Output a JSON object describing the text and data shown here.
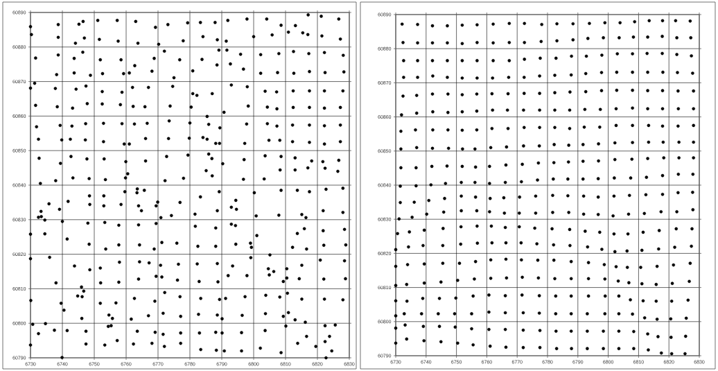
{
  "chart_data": [
    {
      "type": "scatter",
      "color": "#000000",
      "marker": "circle",
      "grid": true,
      "xlim": [
        6730,
        6830
      ],
      "ylim": [
        60790,
        60890
      ],
      "xticks": [
        6730,
        6740,
        6750,
        6760,
        6770,
        6780,
        6790,
        6800,
        6810,
        6820,
        6830
      ],
      "yticks": [
        60790,
        60800,
        60810,
        60820,
        60830,
        60840,
        60850,
        60860,
        60870,
        60880,
        60890
      ],
      "x": [
        6730.0,
        6738.7,
        6745.2,
        6746.5,
        6751.1,
        6757.2,
        6763.0,
        6769.2,
        6773.1,
        6730.3,
        6738.7,
        6744.1,
        6746.9,
        6751.6,
        6757.5,
        6763.7,
        6770.2,
        6772.0,
        6777.9,
        6731.6,
        6738.7,
        6743.7,
        6746.4,
        6751.9,
        6758.4,
        6762.7,
        6768.8,
        6776.8,
        6738.2,
        6743.7,
        6748.8,
        6752.6,
        6759.2,
        6761.0,
        6768.1,
        6775.0,
        6731.3,
        6730.0,
        6737.8,
        6744.3,
        6747.4,
        6752.5,
        6758.7,
        6762.0,
        6767.0,
        6774.6,
        6731.6,
        6738.4,
        6743.2,
        6747.8,
        6752.5,
        6758.2,
        6762.2,
        6765.9,
        6773.8,
        6731.9,
        6739.3,
        6743.0,
        6747.3,
        6752.9,
        6758.7,
        6762.6,
        6766.6,
        6773.5,
        6732.5,
        6739.8,
        6742.5,
        6747.2,
        6752.9,
        6759.4,
        6761.0,
        6766.1,
        6773.3,
        6732.7,
        6739.4,
        6742.7,
        6747.7,
        6753.1,
        6759.9,
        6766.1,
        6772.7,
        6760.5,
        6733.1,
        6737.9,
        6743.3,
        6748.4,
        6753.5,
        6759.8,
        6772.2,
        6779.3,
        6783.3,
        6787.9,
        6791.9,
        6797.9,
        6804.1,
        6808.6,
        6813.1,
        6817.1,
        6821.2,
        6826.7,
        6784.1,
        6788.6,
        6791.4,
        6800.0,
        6805.8,
        6810.9,
        6815.4,
        6817.0,
        6821.4,
        6827.2,
        6783.8,
        6789.1,
        6791.6,
        6795.9,
        6802.2,
        6807.9,
        6812.5,
        6817.3,
        6822.2,
        6828.1,
        6780.9,
        6788.5,
        6792.7,
        6796.8,
        6802.2,
        6807.5,
        6812.6,
        6817.5,
        6822.4,
        6828.3,
        6780.9,
        6782.2,
        6787.0,
        6793.0,
        6798.0,
        6803.6,
        6807.2,
        6812.4,
        6817.5,
        6822.2,
        6828.0,
        6780.4,
        6785.4,
        6790.7,
        6798.3,
        6804.3,
        6807.3,
        6812.4,
        6817.5,
        6822.2,
        6827.2,
        6780.0,
        6785.9,
        6789.4,
        6797.8,
        6804.3,
        6807.3,
        6812.2,
        6817.5,
        6822.2,
        6827.2,
        6779.8,
        6784.1,
        6785.4,
        6788.1,
        6789.3,
        6797.2,
        6804.8,
        6808.2,
        6812.2,
        6817.5,
        6822.2,
        6827.2,
        6779.4,
        6785.9,
        6786.9,
        6790.3,
        6797.0,
        6803.6,
        6808.6,
        6813.0,
        6818.2,
        6821.7,
        6826.7,
        6778.0,
        6785.1,
        6787.0,
        6796.8,
        6803.3,
        6808.3,
        6813.0,
        6817.0,
        6822.4,
        6826.4,
        6735.8,
        6741.8,
        6748.5,
        6748.6,
        6753.0,
        6753.0,
        6759.6,
        6758.4,
        6763.5,
        6763.4,
        6765.7,
        6763.9,
        6764.8,
        6769.9,
        6769.4,
        6776.9,
        6739.1,
        6733.3,
        6732.5,
        6733.4,
        6734.5,
        6740.0,
        6748.0,
        6753.3,
        6757.7,
        6763.9,
        6769.4,
        6770.9,
        6774.2,
        6730.0,
        6734.5,
        6741.5,
        6748.4,
        6753.6,
        6757.7,
        6764.2,
        6768.8,
        6771.2,
        6775.9,
        6730.0,
        6736.0,
        6743.8,
        6748.6,
        6751.9,
        6757.9,
        6764.2,
        6767.2,
        6770.8,
        6776.4,
        6738.0,
        6752.0,
        6757.7,
        6763.9,
        6769.4,
        6771.2,
        6776.1,
        6746.0,
        6746.7,
        6744.8,
        6746.2,
        6746.1,
        6730.1,
        6739.6,
        6740.5,
        6751.9,
        6756.8,
        6762.6,
        6769.0,
        6772.1,
        6776.9,
        6730.7,
        6734.7,
        6737.5,
        6741.5,
        6754.6,
        6755.7,
        6754.4,
        6755.3,
        6732.5,
        6747.4,
        6757.2,
        6761.6,
        6763.5,
        6767.0,
        6769.1,
        6771.6,
        6771.6,
        6777.1,
        6777.1,
        6730.0,
        6739.9,
        6747.4,
        6753.3,
        6762.3,
        6768.1,
        6772.0,
        6777.1,
        6783.3,
        6789.2,
        6794.4,
        6793.0,
        6794.6,
        6800.2,
        6808.6,
        6813.7,
        6817.5,
        6822.7,
        6828.0,
        6781.6,
        6788.6,
        6800.8,
        6807.9,
        6815.1,
        6816.4,
        6821.8,
        6828.0,
        6781.7,
        6788.1,
        6793.0,
        6794.3,
        6813.7,
        6815.9,
        6821.8,
        6828.5,
        6801.0,
        6799.0,
        6799.3,
        6794.4,
        6782.5,
        6788.1,
        6805.1,
        6812.2,
        6816.6,
        6822.0,
        6828.9,
        6799.1,
        6782.3,
        6788.6,
        6793.4,
        6804.6,
        6806.3,
        6810.4,
        6815.1,
        6820.9,
        6828.5,
        6782.9,
        6788.8,
        6792.0,
        6797.9,
        6804.9,
        6809.3,
        6810.4,
        6814.3,
        6822.0,
        6828.8,
        6783.4,
        6789.3,
        6791.2,
        6797.3,
        6803.8,
        6808.2,
        6810.6,
        6815.1,
        6822.2,
        6828.0,
        6782.7,
        6788.6,
        6790.1,
        6796.4,
        6803.7,
        6809.3,
        6810.9,
        6813.0,
        6816.2,
        6822.4,
        6825.6,
        6810.1,
        6783.0,
        6788.1,
        6790.1,
        6796.2,
        6803.6,
        6816.6,
        6822.4,
        6823.8,
        6813.8,
        6783.4,
        6788.3,
        6790.8,
        6796.2,
        6802.1,
        6808.6,
        6819.5,
        6824.5,
        6822.7
      ],
      "values": [
        60885.9,
        60886.5,
        60886.6,
        60887.4,
        60887.7,
        60887.7,
        60887.4,
        60885.7,
        60886.5,
        60883.6,
        60882.8,
        60881.1,
        60882.6,
        60882.2,
        60881.7,
        60881.1,
        60880.8,
        60878.8,
        60881.8,
        60876.8,
        60877.7,
        60876.7,
        60878.5,
        60876.3,
        60876.3,
        60874.6,
        60876.7,
        60876.3,
        60872.0,
        60872.5,
        60871.8,
        60872.3,
        60872.3,
        60872.5,
        60873.0,
        60871.1,
        60869.5,
        60868.1,
        60868.0,
        60867.8,
        60868.7,
        60867.1,
        60866.9,
        60868.3,
        60868.3,
        60868.6,
        60863.1,
        60862.7,
        60862.3,
        60863.6,
        60863.5,
        60863.3,
        60862.8,
        60862.7,
        60862.9,
        60856.9,
        60857.3,
        60857.1,
        60857.8,
        60857.9,
        60857.8,
        60857.7,
        60857.9,
        60858.6,
        60853.3,
        60853.1,
        60853.3,
        60853.1,
        60852.6,
        60851.9,
        60851.9,
        60853.5,
        60853.5,
        60847.8,
        60846.3,
        60848.3,
        60847.6,
        60847.6,
        60846.8,
        60847.0,
        60848.3,
        60843.3,
        60840.5,
        60841.3,
        60842.1,
        60841.9,
        60841.6,
        60842.1,
        60841.3,
        60887.0,
        60887.1,
        60887.1,
        60887.7,
        60888.1,
        60888.1,
        60886.3,
        60886.2,
        60889.3,
        60888.9,
        60888.1,
        60883.0,
        60882.1,
        60881.7,
        60883.0,
        60883.5,
        60884.3,
        60884.1,
        60883.6,
        60883.2,
        60882.3,
        60876.4,
        60879.1,
        60879.1,
        60877.9,
        60877.8,
        60878.1,
        60878.7,
        60878.1,
        60878.4,
        60877.6,
        60873.1,
        60874.8,
        60875.1,
        60873.6,
        60872.4,
        60872.6,
        60872.4,
        60872.9,
        60872.6,
        60872.8,
        60866.5,
        60866.0,
        60866.5,
        60869.0,
        60868.5,
        60867.2,
        60867.0,
        60867.3,
        60867.3,
        60867.3,
        60867.3,
        60862.6,
        60859.9,
        60861.1,
        60862.9,
        60862.6,
        60862.1,
        60862.5,
        60862.5,
        60862.3,
        60862.5,
        60858.0,
        60857.6,
        60856.6,
        60857.7,
        60857.8,
        60857.1,
        60857.4,
        60857.4,
        60857.2,
        60857.4,
        60853.6,
        60853.8,
        60853.3,
        60852.1,
        60852.1,
        60852.1,
        60853.0,
        60853.0,
        60852.6,
        60852.4,
        60851.9,
        60852.6,
        60848.7,
        60849.0,
        60847.7,
        60846.2,
        60847.4,
        60848.5,
        60848.3,
        60847.9,
        60847.0,
        60846.8,
        60847.2,
        60842.0,
        60844.2,
        60842.7,
        60841.7,
        60841.8,
        60844.4,
        60844.4,
        60845.0,
        60844.9,
        60844.0,
        60834.6,
        60835.3,
        60836.9,
        60834.4,
        60836.9,
        60834.0,
        60838.1,
        60834.4,
        60838.9,
        60837.8,
        60838.5,
        60834.0,
        60832.6,
        60835.1,
        60834.0,
        60835.0,
        60833.0,
        60832.4,
        60830.7,
        60830.9,
        60829.9,
        60829.5,
        60829.0,
        60829.2,
        60828.4,
        60828.5,
        60828.9,
        60830.6,
        60831.2,
        60825.8,
        60825.9,
        60824.4,
        60822.9,
        60821.5,
        60822.7,
        60822.7,
        60821.5,
        60823.4,
        60823.2,
        60818.7,
        60819.1,
        60816.6,
        60815.5,
        60816.0,
        60817.7,
        60817.8,
        60817.5,
        60816.8,
        60817.1,
        60811.7,
        60811.7,
        60811.9,
        60812.8,
        60813.6,
        60813.4,
        60812.5,
        60810.5,
        60809.3,
        60807.9,
        60807.7,
        60801.4,
        60806.6,
        60805.8,
        60803.8,
        60805.8,
        60805.9,
        60807.2,
        60806.4,
        60808.9,
        60807.7,
        60799.7,
        60799.9,
        60798.0,
        60797.9,
        60802.4,
        60801.4,
        60799.1,
        60799.3,
        60797.0,
        60797.7,
        60795.0,
        60801.2,
        60797.7,
        60802.2,
        60797.4,
        60802.9,
        60796.8,
        60802.0,
        60797.2,
        60793.7,
        60790.1,
        60794.0,
        60793.7,
        60794.0,
        60794.2,
        60793.3,
        60794.2,
        60836.6,
        60838.1,
        60835.6,
        60833.6,
        60833.0,
        60837.8,
        60838.5,
        60838.5,
        60838.1,
        60838.8,
        60839.1,
        60831.6,
        60832.6,
        60831.1,
        60831.3,
        60831.5,
        60830.6,
        60832.6,
        60832.1,
        60828.1,
        60827.6,
        60828.7,
        60828.3,
        60826.0,
        60827.4,
        60826.8,
        60827.2,
        60825.4,
        60823.2,
        60822.0,
        60822.9,
        60822.3,
        60822.3,
        60819.8,
        60822.0,
        60821.5,
        60822.6,
        60822.7,
        60819.0,
        60817.2,
        60817.3,
        60816.6,
        60815.8,
        60815.0,
        60815.8,
        60816.8,
        60818.3,
        60818.1,
        60812.1,
        60812.0,
        60813.8,
        60813.8,
        60814.0,
        60812.1,
        60813.1,
        60812.9,
        60812.8,
        60812.9,
        60807.2,
        60806.9,
        60807.2,
        60807.7,
        60808.1,
        60807.6,
        60808.7,
        60807.0,
        60807.0,
        60806.8,
        60802.6,
        60802.4,
        60801.3,
        60802.3,
        60802.8,
        60802.0,
        60803.1,
        60801.0,
        60800.3,
        60799.3,
        60799.5,
        60799.2,
        60797.2,
        60797.4,
        60797.2,
        60797.3,
        60797.9,
        60796.2,
        60794.7,
        60796.2,
        60794.2,
        60792.4,
        60792.2,
        60792.0,
        60792.0,
        60792.8,
        60791.5,
        60793.3,
        60792.0,
        60790.0
      ]
    },
    {
      "type": "scatter",
      "color": "#000000",
      "marker": "circle",
      "grid": true,
      "xlim": [
        6730,
        6830
      ],
      "ylim": [
        60790,
        60890
      ],
      "xticks": [
        6730,
        6740,
        6750,
        6760,
        6770,
        6780,
        6790,
        6800,
        6810,
        6820,
        6830
      ],
      "yticks": [
        60790,
        60800,
        60810,
        60820,
        60830,
        60840,
        60850,
        60860,
        60870,
        60880,
        60890
      ],
      "x": [
        6732.1,
        6737.2,
        6742.1,
        6747.0,
        6751.9,
        6756.8,
        6762.1,
        6767.4,
        6772.4,
        6778.1,
        6783.1,
        6788.4,
        6793.8,
        6798.9,
        6803.9,
        6808.7,
        6813.5,
        6817.9,
        6822.2,
        6827.0,
        6732.4,
        6737.2,
        6742.1,
        6747.0,
        6751.9,
        6756.8,
        6762.1,
        6767.4,
        6772.4,
        6777.9,
        6783.1,
        6788.4,
        6793.3,
        6798.4,
        6803.6,
        6808.3,
        6813.0,
        6817.8,
        6822.6,
        6827.2,
        6732.6,
        6737.2,
        6742.1,
        6747.0,
        6751.9,
        6756.8,
        6762.1,
        6767.4,
        6772.4,
        6777.6,
        6782.8,
        6787.9,
        6792.8,
        6797.9,
        6803.0,
        6808.0,
        6812.8,
        6817.8,
        6822.6,
        6827.4,
        6732.6,
        6737.2,
        6742.2,
        6747.0,
        6751.9,
        6756.8,
        6761.9,
        6767.2,
        6772.3,
        6777.4,
        6782.4,
        6787.8,
        6792.6,
        6797.8,
        6802.8,
        6808.0,
        6813.0,
        6818.0,
        6822.8,
        6827.8,
        6732.4,
        6736.9,
        6742.1,
        6747.2,
        6751.9,
        6756.7,
        6761.7,
        6767.0,
        6772.3,
        6777.4,
        6782.4,
        6787.4,
        6792.6,
        6797.8,
        6802.8,
        6808.0,
        6813.0,
        6817.9,
        6823.0,
        6828.1,
        6731.9,
        6736.9,
        6742.2,
        6747.2,
        6751.9,
        6756.7,
        6761.9,
        6766.8,
        6772.1,
        6777.4,
        6782.4,
        6787.3,
        6792.3,
        6797.4,
        6802.6,
        6808.0,
        6813.0,
        6817.9,
        6823.1,
        6828.1,
        6731.7,
        6736.5,
        6742.2,
        6747.2,
        6751.9,
        6756.7,
        6761.7,
        6767.0,
        6772.3,
        6777.4,
        6782.4,
        6787.3,
        6792.1,
        6797.2,
        6802.6,
        6808.0,
        6813.3,
        6817.9,
        6823.0,
        6828.1,
        6731.7,
        6736.9,
        6742.1,
        6747.4,
        6752.0,
        6756.1,
        6761.3,
        6766.5,
        6772.1,
        6777.3,
        6782.2,
        6787.0,
        6791.7,
        6796.8,
        6802.2,
        6808.0,
        6813.3,
        6818.1,
        6823.3,
        6828.1,
        6731.7,
        6736.7,
        6741.9,
        6746.9,
        6751.9,
        6756.3,
        6760.9,
        6766.3,
        6771.7,
        6777.0,
        6782.1,
        6786.9,
        6791.7,
        6796.8,
        6802.2,
        6807.8,
        6813.0,
        6818.3,
        6823.3,
        6828.1,
        6731.5,
        6736.7,
        6741.6,
        6746.4,
        6751.6,
        6756.1,
        6760.9,
        6766.1,
        6771.4,
        6776.7,
        6781.9,
        6786.7,
        6791.7,
        6796.7,
        6802.0,
        6807.4,
        6812.6,
        6817.9,
        6823.1,
        6827.9,
        6731.5,
        6736.1,
        6740.9,
        6746.1,
        6751.6,
        6756.3,
        6761.1,
        6765.6,
        6770.8,
        6776.1,
        6781.7,
        6786.7,
        6791.9,
        6796.7,
        6801.9,
        6807.0,
        6812.4,
        6817.9,
        6823.0,
        6827.8,
        6731.1,
        6735.4,
        6740.2,
        6745.8,
        6751.6,
        6756.7,
        6760.9,
        6765.8,
        6770.7,
        6776.1,
        6781.7,
        6787.0,
        6791.9,
        6796.7,
        6801.6,
        6806.7,
        6811.9,
        6817.4,
        6822.6,
        6827.9,
        6730.6,
        6734.5,
        6739.4,
        6745.6,
        6751.5,
        6756.8,
        6761.5,
        6766.1,
        6770.7,
        6775.8,
        6781.5,
        6787.3,
        6792.4,
        6797.2,
        6801.9,
        6806.5,
        6811.5,
        6816.8,
        6822.4,
        6827.6,
        6730.0,
        6734.2,
        6739.0,
        6745.5,
        6751.4,
        6756.9,
        6761.7,
        6766.3,
        6771.3,
        6776.5,
        6782.0,
        6787.4,
        6793.2,
        6797.9,
        6802.2,
        6806.2,
        6811.1,
        6816.6,
        6821.9,
        6827.4,
        6730.0,
        6733.9,
        6739.4,
        6745.5,
        6751.0,
        6756.3,
        6761.3,
        6766.3,
        6771.4,
        6776.8,
        6782.1,
        6787.8,
        6793.5,
        6798.7,
        6802.6,
        6806.3,
        6810.7,
        6816.1,
        6821.5,
        6827.0,
        6730.0,
        6733.6,
        6739.4,
        6744.9,
        6750.4,
        6755.9,
        6761.3,
        6766.5,
        6771.7,
        6777.0,
        6782.4,
        6787.8,
        6793.5,
        6798.9,
        6803.3,
        6806.8,
        6811.1,
        6815.8,
        6821.1,
        6826.7,
        6730.0,
        6733.7,
        6738.9,
        6744.4,
        6749.8,
        6755.5,
        6760.7,
        6766.1,
        6771.6,
        6777.3,
        6782.7,
        6787.8,
        6793.5,
        6799.0,
        6803.5,
        6807.3,
        6811.5,
        6815.8,
        6820.9,
        6826.3,
        6730.0,
        6732.8,
        6738.5,
        6744.0,
        6749.4,
        6755.0,
        6760.7,
        6766.1,
        6772.0,
        6777.3,
        6782.7,
        6787.8,
        6793.1,
        6798.9,
        6803.5,
        6808.0,
        6812.0,
        6816.1,
        6820.6,
        6825.7,
        6730.0,
        6733.1,
        6739.1,
        6744.4,
        6749.6,
        6755.0,
        6760.7,
        6766.1,
        6772.0,
        6777.5,
        6782.8,
        6787.8,
        6793.1,
        6798.4,
        6803.5,
        6808.4,
        6813.0,
        6816.4,
        6820.7,
        6825.5,
        6730.0,
        6733.6,
        6739.3,
        6744.9,
        6750.4,
        6755.5,
        6761.1,
        6766.3,
        6772.0,
        6777.5,
        6783.0,
        6787.9,
        6793.1,
        6798.4,
        6803.5,
        6808.4,
        6813.2,
        6817.5,
        6820.9,
        6825.3
      ],
      "values": [
        60887.2,
        60887.1,
        60886.7,
        60886.7,
        60886.9,
        60887.0,
        60887.2,
        60887.4,
        60887.4,
        60887.1,
        60887.3,
        60887.3,
        60887.4,
        60887.6,
        60887.6,
        60887.9,
        60888.2,
        60888.2,
        60888.2,
        60888.1,
        60881.8,
        60881.7,
        60881.7,
        60881.7,
        60881.5,
        60881.8,
        60881.7,
        60881.8,
        60881.8,
        60882.1,
        60882.3,
        60882.6,
        60883.0,
        60883.2,
        60883.2,
        60883.4,
        60883.4,
        60883.6,
        60883.2,
        60883.2,
        60876.5,
        60876.5,
        60876.5,
        60876.5,
        60876.5,
        60876.5,
        60876.5,
        60876.5,
        60876.9,
        60877.2,
        60877.2,
        60877.8,
        60877.8,
        60878.1,
        60878.5,
        60878.5,
        60878.6,
        60878.6,
        60878.3,
        60877.9,
        60871.6,
        60871.6,
        60872.0,
        60871.6,
        60871.4,
        60871.4,
        60871.4,
        60871.6,
        60871.6,
        60872.0,
        60872.2,
        60872.3,
        60872.7,
        60873.0,
        60873.1,
        60873.1,
        60873.1,
        60873.1,
        60873.0,
        60872.8,
        60866.1,
        60866.3,
        60866.7,
        60866.7,
        60866.5,
        60866.7,
        60866.8,
        60866.8,
        60866.9,
        60866.9,
        60867.1,
        60867.3,
        60867.4,
        60867.7,
        60867.8,
        60867.8,
        60867.7,
        60867.7,
        60867.6,
        60867.6,
        60860.6,
        60861.1,
        60861.5,
        60861.3,
        60861.5,
        60861.7,
        60862.0,
        60862.0,
        60862.0,
        60862.0,
        60862.0,
        60862.0,
        60862.2,
        60862.2,
        60862.4,
        60862.6,
        60862.4,
        60862.4,
        60862.4,
        60862.4,
        60855.8,
        60856.2,
        60856.2,
        60856.2,
        60856.1,
        60856.2,
        60856.6,
        60856.6,
        60856.9,
        60856.9,
        60856.9,
        60856.6,
        60857.0,
        60857.0,
        60857.5,
        60857.5,
        60857.5,
        60857.3,
        60857.3,
        60857.5,
        60850.6,
        60851.0,
        60850.8,
        60850.8,
        60850.6,
        60850.6,
        60851.0,
        60851.2,
        60851.5,
        60851.5,
        60851.9,
        60851.7,
        60851.9,
        60852.1,
        60852.4,
        60852.5,
        60852.6,
        60852.6,
        60852.6,
        60852.6,
        60845.1,
        60845.1,
        60845.5,
        60845.6,
        60845.5,
        60845.3,
        60845.5,
        60845.9,
        60846.1,
        60846.5,
        60846.6,
        60846.8,
        60847.0,
        60847.1,
        60847.5,
        60847.6,
        60847.8,
        60848.0,
        60848.0,
        60848.0,
        60839.7,
        60839.8,
        60840.1,
        60840.5,
        60840.8,
        60840.8,
        60840.5,
        60840.8,
        60841.0,
        60841.5,
        60841.8,
        60841.8,
        60841.8,
        60841.9,
        60842.1,
        60842.1,
        60842.3,
        60842.8,
        60843.2,
        60843.2,
        60834.9,
        60835.0,
        60835.5,
        60836.1,
        60836.8,
        60836.5,
        60836.1,
        60836.3,
        60836.5,
        60836.8,
        60837.0,
        60836.9,
        60836.8,
        60836.5,
        60836.8,
        60837.0,
        60837.2,
        60837.3,
        60837.8,
        60837.9,
        60830.1,
        60830.6,
        60831.5,
        60832.1,
        60832.5,
        60832.5,
        60832.2,
        60831.8,
        60831.8,
        60831.8,
        60832.0,
        60832.0,
        60831.5,
        60831.4,
        60831.0,
        60831.5,
        60831.7,
        60832.2,
        60832.2,
        60832.8,
        60825.8,
        60826.3,
        60826.8,
        60827.3,
        60827.8,
        60828.0,
        60828.0,
        60827.6,
        60827.8,
        60827.4,
        60827.2,
        60827.0,
        60826.5,
        60826.2,
        60825.7,
        60825.7,
        60826.2,
        60826.7,
        60827.2,
        60827.2,
        60821.1,
        60821.9,
        60822.3,
        60822.3,
        60822.7,
        60823.0,
        60823.1,
        60823.1,
        60823.1,
        60822.8,
        60822.5,
        60822.3,
        60821.9,
        60821.2,
        60820.5,
        60820.7,
        60820.9,
        60821.3,
        60821.8,
        60822.1,
        60816.2,
        60816.7,
        60816.9,
        60817.1,
        60817.1,
        60817.6,
        60818.1,
        60818.3,
        60818.1,
        60818.0,
        60818.0,
        60817.6,
        60817.3,
        60816.7,
        60816.1,
        60815.9,
        60815.9,
        60816.2,
        60816.6,
        60817.1,
        60810.6,
        60810.9,
        60811.3,
        60811.6,
        60812.1,
        60812.5,
        60812.7,
        60812.8,
        60813.0,
        60812.8,
        60812.6,
        60812.6,
        60812.6,
        60812.5,
        60811.9,
        60811.4,
        60811.1,
        60810.9,
        60811.2,
        60811.8,
        60806.1,
        60806.0,
        60806.8,
        60806.8,
        60806.9,
        60807.5,
        60807.8,
        60807.6,
        60807.8,
        60807.6,
        60807.5,
        60807.5,
        60807.5,
        60807.5,
        60807.5,
        60806.4,
        60806.1,
        60806.0,
        60806.0,
        60806.3,
        60801.7,
        60802.3,
        60802.3,
        60802.3,
        60802.3,
        60802.3,
        60802.8,
        60802.6,
        60802.6,
        60802.5,
        60802.3,
        60802.3,
        60802.3,
        60802.3,
        60802.3,
        60802.2,
        60801.1,
        60800.7,
        60800.8,
        60801.0,
        60798.1,
        60799.0,
        60798.6,
        60798.6,
        60798.4,
        60797.9,
        60797.7,
        60797.7,
        60797.5,
        60797.4,
        60797.2,
        60797.2,
        60797.2,
        60797.2,
        60797.2,
        60797.1,
        60796.4,
        60795.6,
        60795.4,
        60795.7,
        60793.7,
        60794.9,
        60794.4,
        60794.1,
        60793.7,
        60793.2,
        60792.8,
        60792.5,
        60792.4,
        60792.4,
        60792.1,
        60792.1,
        60792.1,
        60792.1,
        60792.1,
        60792.1,
        60791.7,
        60790.8,
        60790.6,
        60790.6
      ]
    }
  ]
}
